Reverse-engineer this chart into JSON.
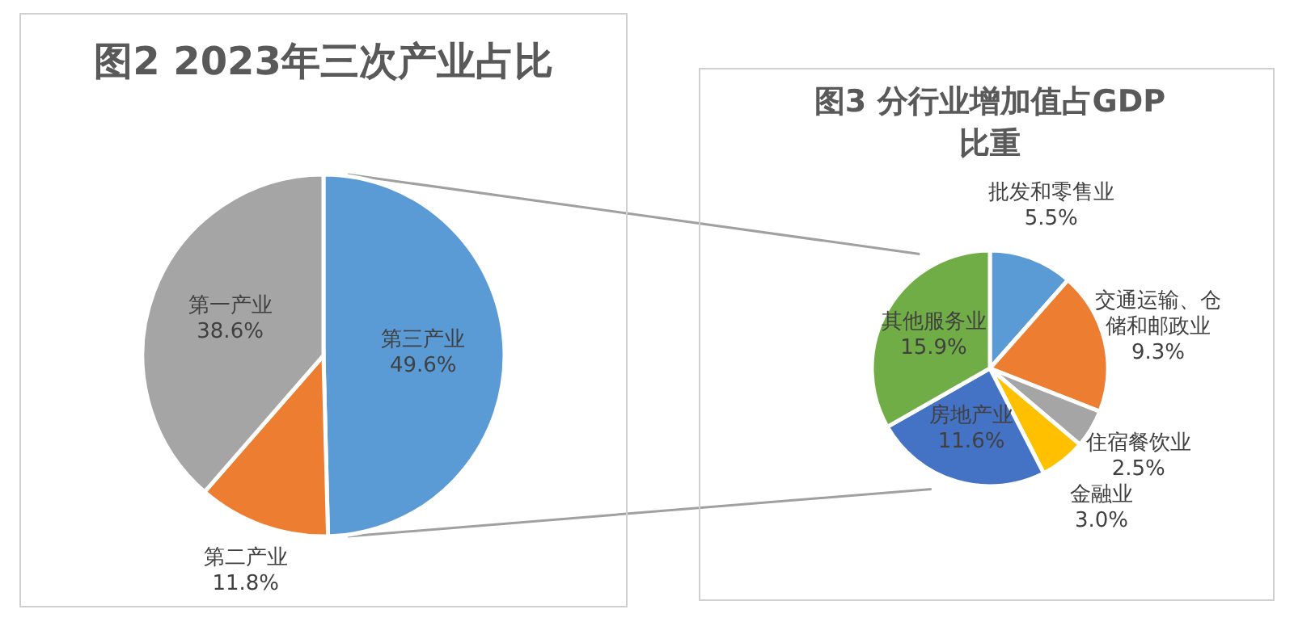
{
  "chart_data": [
    {
      "type": "pie",
      "title": "图2 2023年三次产业占比",
      "categories": [
        "第三产业",
        "第二产业",
        "第一产业"
      ],
      "values": [
        49.6,
        11.8,
        38.6
      ],
      "value_labels": [
        "49.6%",
        "11.8%",
        "38.6%"
      ],
      "colors": [
        "#5b9bd5",
        "#ed7d31",
        "#a5a5a5"
      ],
      "data_labels": true
    },
    {
      "type": "pie",
      "title": "图3 分行业增加值占GDP比重",
      "categories": [
        "批发和零售业",
        "交通运输、仓储和邮政业",
        "住宿餐饮业",
        "金融业",
        "房地产业",
        "其他服务业"
      ],
      "values": [
        5.5,
        9.3,
        2.5,
        3.0,
        11.6,
        15.9
      ],
      "value_labels": [
        "5.5%",
        "9.3%",
        "2.5%",
        "3.0%",
        "11.6%",
        "15.9%"
      ],
      "colors": [
        "#5b9bd5",
        "#ed7d31",
        "#a5a5a5",
        "#ffc000",
        "#4472c4",
        "#70ad47"
      ],
      "data_labels": true
    }
  ]
}
